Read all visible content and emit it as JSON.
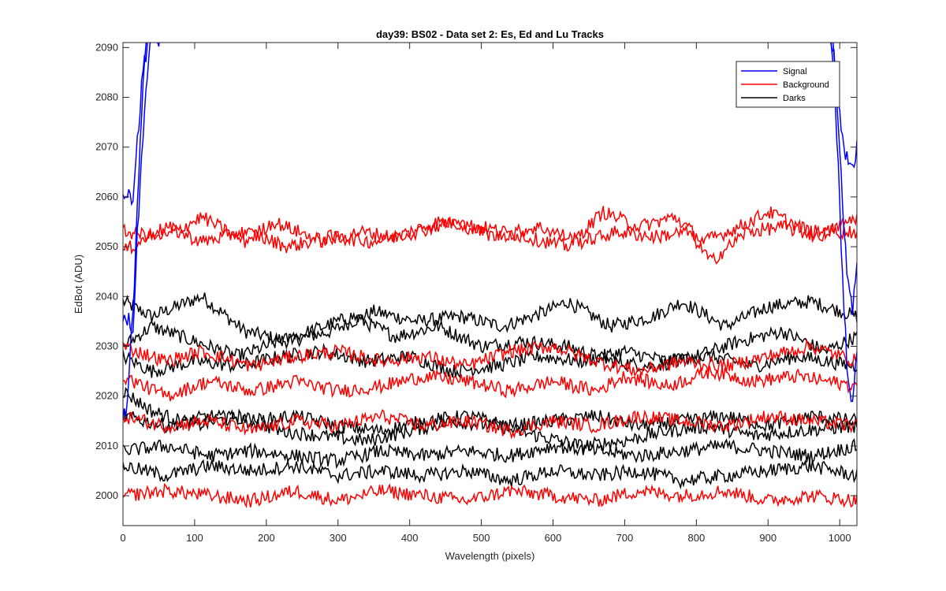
{
  "chart_data": {
    "type": "line",
    "title": "day39: BS02 - Data set 2: Es, Ed and Lu Tracks",
    "xlabel": "Wavelength (pixels)",
    "ylabel": "EdBot (ADU)",
    "xlim": [
      0,
      1024
    ],
    "ylim": [
      1994,
      2091
    ],
    "xticks": [
      0,
      100,
      200,
      300,
      400,
      500,
      600,
      700,
      800,
      900,
      1000
    ],
    "yticks": [
      2000,
      2010,
      2020,
      2030,
      2040,
      2050,
      2060,
      2070,
      2080,
      2090
    ],
    "grid": false,
    "legend_position": "top-right",
    "legend": [
      {
        "label": "Signal",
        "color": "#0000ff"
      },
      {
        "label": "Background",
        "color": "#ff0000"
      },
      {
        "label": "Darks",
        "color": "#000000"
      }
    ],
    "series": [
      {
        "group": "Signal",
        "color": "#0000ff",
        "points": [
          [
            0,
            2061
          ],
          [
            8,
            2060
          ],
          [
            14,
            2058
          ],
          [
            20,
            2072
          ],
          [
            28,
            2085
          ],
          [
            36,
            2092
          ],
          [
            44,
            2093
          ],
          [
            50,
            2092
          ],
          [
            56,
            2094
          ],
          [
            970,
            2094
          ],
          [
            990,
            2092
          ],
          [
            998,
            2080
          ],
          [
            1005,
            2070
          ],
          [
            1012,
            2068
          ],
          [
            1018,
            2066
          ],
          [
            1024,
            2070
          ]
        ]
      },
      {
        "group": "Signal",
        "color": "#0000ff",
        "points": [
          [
            0,
            2034
          ],
          [
            8,
            2036
          ],
          [
            14,
            2033
          ],
          [
            20,
            2052
          ],
          [
            26,
            2068
          ],
          [
            32,
            2082
          ],
          [
            38,
            2093
          ],
          [
            44,
            2095
          ],
          [
            980,
            2095
          ],
          [
            992,
            2090
          ],
          [
            1000,
            2070
          ],
          [
            1006,
            2052
          ],
          [
            1012,
            2042
          ],
          [
            1018,
            2038
          ],
          [
            1024,
            2047
          ]
        ]
      },
      {
        "group": "Signal",
        "color": "#0000ff",
        "points": [
          [
            0,
            2016
          ],
          [
            6,
            2018
          ],
          [
            12,
            2032
          ],
          [
            18,
            2050
          ],
          [
            24,
            2070
          ],
          [
            30,
            2088
          ],
          [
            36,
            2095
          ],
          [
            985,
            2095
          ],
          [
            994,
            2080
          ],
          [
            1000,
            2058
          ],
          [
            1006,
            2038
          ],
          [
            1012,
            2022
          ],
          [
            1018,
            2018
          ],
          [
            1024,
            2030
          ]
        ]
      },
      {
        "group": "Background",
        "color": "#ff0000",
        "points": [
          [
            0,
            2053
          ],
          [
            60,
            2052
          ],
          [
            110,
            2056
          ],
          [
            170,
            2051
          ],
          [
            210,
            2055
          ],
          [
            280,
            2051
          ],
          [
            330,
            2053
          ],
          [
            380,
            2052
          ],
          [
            440,
            2055
          ],
          [
            500,
            2054
          ],
          [
            560,
            2052
          ],
          [
            620,
            2050
          ],
          [
            670,
            2057
          ],
          [
            720,
            2054
          ],
          [
            770,
            2056
          ],
          [
            810,
            2051
          ],
          [
            860,
            2054
          ],
          [
            900,
            2057
          ],
          [
            960,
            2053
          ],
          [
            1024,
            2053
          ]
        ]
      },
      {
        "group": "Background",
        "color": "#ff0000",
        "points": [
          [
            0,
            2049
          ],
          [
            60,
            2054
          ],
          [
            110,
            2051
          ],
          [
            170,
            2053
          ],
          [
            230,
            2050
          ],
          [
            290,
            2052
          ],
          [
            350,
            2051
          ],
          [
            410,
            2053
          ],
          [
            460,
            2055
          ],
          [
            520,
            2052
          ],
          [
            580,
            2054
          ],
          [
            640,
            2051
          ],
          [
            690,
            2053
          ],
          [
            740,
            2052
          ],
          [
            790,
            2053
          ],
          [
            820,
            2047
          ],
          [
            870,
            2053
          ],
          [
            920,
            2054
          ],
          [
            970,
            2052
          ],
          [
            1024,
            2056
          ]
        ]
      },
      {
        "group": "Background",
        "color": "#ff0000",
        "points": [
          [
            0,
            2030
          ],
          [
            60,
            2027
          ],
          [
            110,
            2029
          ],
          [
            180,
            2026
          ],
          [
            240,
            2028
          ],
          [
            300,
            2029
          ],
          [
            360,
            2027
          ],
          [
            420,
            2028
          ],
          [
            480,
            2026
          ],
          [
            540,
            2029
          ],
          [
            600,
            2030
          ],
          [
            660,
            2027
          ],
          [
            720,
            2025
          ],
          [
            780,
            2027
          ],
          [
            840,
            2026
          ],
          [
            900,
            2028
          ],
          [
            960,
            2030
          ],
          [
            1024,
            2027
          ]
        ]
      },
      {
        "group": "Background",
        "color": "#ff0000",
        "points": [
          [
            0,
            2024
          ],
          [
            60,
            2020
          ],
          [
            120,
            2023
          ],
          [
            180,
            2021
          ],
          [
            240,
            2023
          ],
          [
            300,
            2021
          ],
          [
            360,
            2022
          ],
          [
            420,
            2024
          ],
          [
            480,
            2023
          ],
          [
            540,
            2021
          ],
          [
            600,
            2023
          ],
          [
            660,
            2021
          ],
          [
            700,
            2024
          ],
          [
            760,
            2022
          ],
          [
            820,
            2025
          ],
          [
            880,
            2023
          ],
          [
            940,
            2024
          ],
          [
            1024,
            2022
          ]
        ]
      },
      {
        "group": "Background",
        "color": "#ff0000",
        "points": [
          [
            0,
            2016
          ],
          [
            60,
            2014
          ],
          [
            120,
            2015
          ],
          [
            180,
            2013
          ],
          [
            240,
            2015
          ],
          [
            300,
            2014
          ],
          [
            360,
            2016
          ],
          [
            420,
            2014
          ],
          [
            480,
            2015
          ],
          [
            540,
            2013
          ],
          [
            600,
            2015
          ],
          [
            660,
            2014
          ],
          [
            720,
            2016
          ],
          [
            780,
            2015
          ],
          [
            840,
            2014
          ],
          [
            900,
            2016
          ],
          [
            960,
            2015
          ],
          [
            1024,
            2014
          ]
        ]
      },
      {
        "group": "Background",
        "color": "#ff0000",
        "points": [
          [
            0,
            2000
          ],
          [
            60,
            2001
          ],
          [
            120,
            2000
          ],
          [
            180,
            1999
          ],
          [
            240,
            2001
          ],
          [
            300,
            1999
          ],
          [
            360,
            2001
          ],
          [
            420,
            2000
          ],
          [
            480,
            1999
          ],
          [
            540,
            2001
          ],
          [
            600,
            2000
          ],
          [
            660,
            1999
          ],
          [
            720,
            2001
          ],
          [
            780,
            2000
          ],
          [
            840,
            2001
          ],
          [
            900,
            1999
          ],
          [
            960,
            2000
          ],
          [
            1024,
            1999
          ]
        ]
      },
      {
        "group": "Darks",
        "color": "#000000",
        "points": [
          [
            0,
            2039
          ],
          [
            40,
            2036
          ],
          [
            110,
            2040
          ],
          [
            170,
            2033
          ],
          [
            230,
            2031
          ],
          [
            290,
            2033
          ],
          [
            350,
            2037
          ],
          [
            410,
            2035
          ],
          [
            470,
            2036
          ],
          [
            530,
            2034
          ],
          [
            590,
            2037
          ],
          [
            620,
            2039
          ],
          [
            680,
            2034
          ],
          [
            740,
            2036
          ],
          [
            780,
            2039
          ],
          [
            840,
            2034
          ],
          [
            900,
            2038
          ],
          [
            960,
            2039
          ],
          [
            1024,
            2036
          ]
        ]
      },
      {
        "group": "Darks",
        "color": "#000000",
        "points": [
          [
            0,
            2030
          ],
          [
            40,
            2034
          ],
          [
            100,
            2031
          ],
          [
            160,
            2028
          ],
          [
            220,
            2031
          ],
          [
            280,
            2034
          ],
          [
            320,
            2036
          ],
          [
            380,
            2032
          ],
          [
            440,
            2034
          ],
          [
            500,
            2030
          ],
          [
            560,
            2031
          ],
          [
            620,
            2030
          ],
          [
            680,
            2027
          ],
          [
            740,
            2026
          ],
          [
            800,
            2028
          ],
          [
            860,
            2031
          ],
          [
            920,
            2033
          ],
          [
            980,
            2029
          ],
          [
            1024,
            2032
          ]
        ]
      },
      {
        "group": "Darks",
        "color": "#000000",
        "points": [
          [
            0,
            2028
          ],
          [
            40,
            2025
          ],
          [
            100,
            2027
          ],
          [
            160,
            2026
          ],
          [
            220,
            2028
          ],
          [
            280,
            2029
          ],
          [
            340,
            2027
          ],
          [
            400,
            2028
          ],
          [
            460,
            2025
          ],
          [
            520,
            2026
          ],
          [
            580,
            2028
          ],
          [
            640,
            2027
          ],
          [
            700,
            2029
          ],
          [
            760,
            2027
          ],
          [
            820,
            2028
          ],
          [
            880,
            2026
          ],
          [
            940,
            2028
          ],
          [
            1024,
            2026
          ]
        ]
      },
      {
        "group": "Darks",
        "color": "#000000",
        "points": [
          [
            0,
            2021
          ],
          [
            40,
            2017
          ],
          [
            100,
            2014
          ],
          [
            160,
            2016
          ],
          [
            220,
            2013
          ],
          [
            280,
            2012
          ],
          [
            340,
            2011
          ],
          [
            400,
            2013
          ],
          [
            460,
            2015
          ],
          [
            520,
            2014
          ],
          [
            580,
            2012
          ],
          [
            640,
            2010
          ],
          [
            700,
            2011
          ],
          [
            760,
            2013
          ],
          [
            820,
            2014
          ],
          [
            880,
            2012
          ],
          [
            940,
            2013
          ],
          [
            1024,
            2014
          ]
        ]
      },
      {
        "group": "Darks",
        "color": "#000000",
        "points": [
          [
            0,
            2016
          ],
          [
            60,
            2014
          ],
          [
            120,
            2016
          ],
          [
            180,
            2015
          ],
          [
            240,
            2016
          ],
          [
            300,
            2014
          ],
          [
            360,
            2013
          ],
          [
            420,
            2015
          ],
          [
            480,
            2016
          ],
          [
            540,
            2014
          ],
          [
            600,
            2015
          ],
          [
            660,
            2016
          ],
          [
            720,
            2014
          ],
          [
            780,
            2015
          ],
          [
            840,
            2016
          ],
          [
            900,
            2014
          ],
          [
            960,
            2016
          ],
          [
            1024,
            2015
          ]
        ]
      },
      {
        "group": "Darks",
        "color": "#000000",
        "points": [
          [
            0,
            2009
          ],
          [
            60,
            2010
          ],
          [
            120,
            2008
          ],
          [
            180,
            2009
          ],
          [
            240,
            2008
          ],
          [
            300,
            2007
          ],
          [
            360,
            2009
          ],
          [
            420,
            2008
          ],
          [
            480,
            2009
          ],
          [
            540,
            2008
          ],
          [
            600,
            2010
          ],
          [
            660,
            2009
          ],
          [
            720,
            2008
          ],
          [
            780,
            2009
          ],
          [
            840,
            2010
          ],
          [
            900,
            2009
          ],
          [
            960,
            2008
          ],
          [
            1024,
            2010
          ]
        ]
      },
      {
        "group": "Darks",
        "color": "#000000",
        "points": [
          [
            0,
            2006
          ],
          [
            60,
            2004
          ],
          [
            120,
            2006
          ],
          [
            180,
            2005
          ],
          [
            240,
            2006
          ],
          [
            300,
            2004
          ],
          [
            360,
            2005
          ],
          [
            420,
            2004
          ],
          [
            480,
            2005
          ],
          [
            540,
            2003
          ],
          [
            600,
            2005
          ],
          [
            660,
            2004
          ],
          [
            720,
            2005
          ],
          [
            780,
            2003
          ],
          [
            840,
            2004
          ],
          [
            900,
            2005
          ],
          [
            960,
            2006
          ],
          [
            1024,
            2004
          ]
        ]
      }
    ]
  }
}
